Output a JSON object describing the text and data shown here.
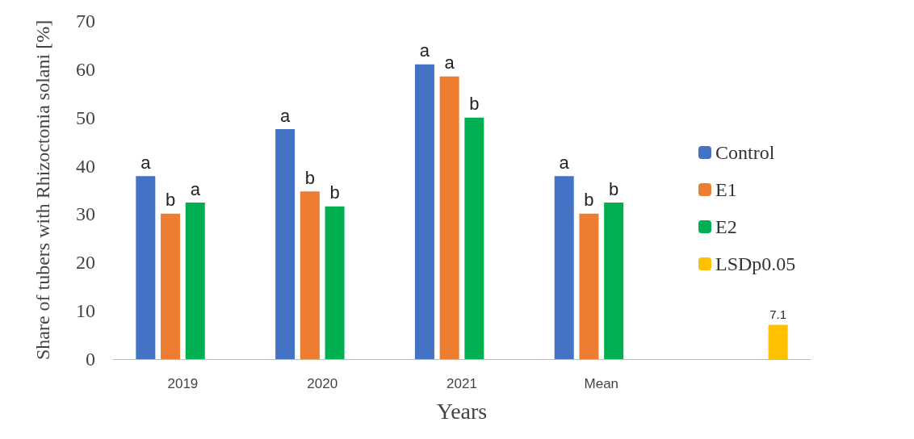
{
  "chart_data": {
    "type": "bar",
    "xlabel": "Years",
    "ylabel": "Share of tubers with Rhizoctonia solani [%]",
    "categories": [
      "2019",
      "2020",
      "2021",
      "Mean",
      null
    ],
    "series": [
      {
        "name": "Control",
        "color": "#4472c4",
        "values": [
          37.9,
          47.6,
          61.0,
          37.9,
          null
        ],
        "value_labels": [
          "a",
          "a",
          "a",
          "a",
          null
        ]
      },
      {
        "name": "E1",
        "color": "#ed7d31",
        "values": [
          30.1,
          34.7,
          58.5,
          30.1,
          null
        ],
        "value_labels": [
          "b",
          "b",
          "a",
          "b",
          null
        ]
      },
      {
        "name": "E2",
        "color": "#00b050",
        "values": [
          32.4,
          31.6,
          50.0,
          32.4,
          null
        ],
        "value_labels": [
          "a",
          "b",
          "b",
          "b",
          null
        ]
      },
      {
        "name": "LSDp0.05",
        "color": "#ffc000",
        "values": [
          null,
          null,
          null,
          null,
          7.1
        ],
        "value_labels": [
          null,
          null,
          null,
          null,
          "7.1"
        ]
      }
    ],
    "ylim": [
      0,
      70
    ],
    "yticks": [
      0,
      10,
      20,
      30,
      40,
      50,
      60,
      70
    ],
    "grid": false,
    "legend": "right"
  }
}
